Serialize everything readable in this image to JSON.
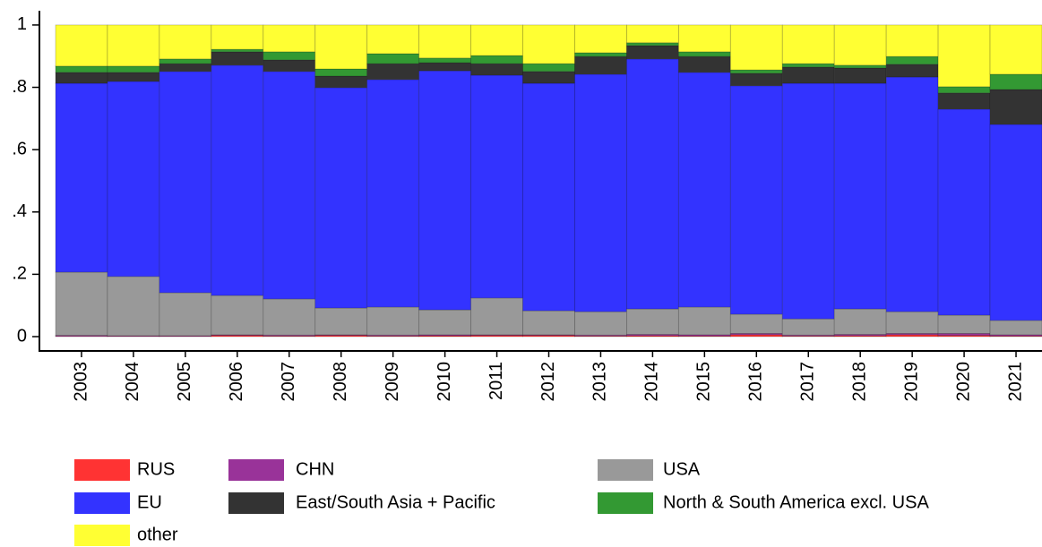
{
  "chart_data": {
    "type": "stacked_bar",
    "categories": [
      "2003",
      "2004",
      "2005",
      "2006",
      "2007",
      "2008",
      "2009",
      "2010",
      "2011",
      "2012",
      "2013",
      "2014",
      "2015",
      "2016",
      "2017",
      "2018",
      "2019",
      "2020",
      "2021"
    ],
    "series": [
      {
        "name": "RUS",
        "color": "#ff3333",
        "values": [
          0.001,
          0.001,
          0.001,
          0.004,
          0.002,
          0.004,
          0.002,
          0.003,
          0.004,
          0.004,
          0.002,
          0.003,
          0.002,
          0.006,
          0.002,
          0.003,
          0.006,
          0.004,
          0.002
        ]
      },
      {
        "name": "CHN",
        "color": "#993399",
        "values": [
          0.003,
          0.002,
          0.002,
          0.002,
          0.003,
          0.002,
          0.003,
          0.003,
          0.002,
          0.002,
          0.003,
          0.004,
          0.004,
          0.004,
          0.003,
          0.004,
          0.004,
          0.006,
          0.004
        ]
      },
      {
        "name": "USA",
        "color": "#999999",
        "values": [
          0.203,
          0.19,
          0.138,
          0.126,
          0.116,
          0.086,
          0.09,
          0.08,
          0.118,
          0.077,
          0.075,
          0.082,
          0.089,
          0.062,
          0.052,
          0.082,
          0.07,
          0.059,
          0.046
        ]
      },
      {
        "name": "EU",
        "color": "#3333ff",
        "values": [
          0.606,
          0.626,
          0.71,
          0.739,
          0.73,
          0.707,
          0.73,
          0.767,
          0.715,
          0.73,
          0.762,
          0.802,
          0.753,
          0.733,
          0.756,
          0.724,
          0.753,
          0.661,
          0.629
        ]
      },
      {
        "name": "East/South Asia + Pacific",
        "color": "#333333",
        "values": [
          0.035,
          0.029,
          0.025,
          0.043,
          0.037,
          0.037,
          0.051,
          0.026,
          0.037,
          0.038,
          0.057,
          0.043,
          0.051,
          0.04,
          0.052,
          0.049,
          0.041,
          0.052,
          0.112
        ]
      },
      {
        "name": "North & South America excl. USA",
        "color": "#339933",
        "values": [
          0.02,
          0.02,
          0.015,
          0.008,
          0.026,
          0.023,
          0.032,
          0.015,
          0.026,
          0.025,
          0.012,
          0.009,
          0.015,
          0.011,
          0.011,
          0.009,
          0.025,
          0.02,
          0.049
        ]
      },
      {
        "name": "other",
        "color": "#ffff33",
        "values": [
          0.132,
          0.132,
          0.109,
          0.078,
          0.086,
          0.141,
          0.092,
          0.106,
          0.098,
          0.124,
          0.089,
          0.057,
          0.086,
          0.144,
          0.124,
          0.129,
          0.101,
          0.198,
          0.158
        ]
      }
    ],
    "ylim": [
      0,
      1.04
    ],
    "yticks": [
      0,
      {
        "value": 0.2,
        "label": ".2"
      },
      {
        "value": 0.4,
        "label": ".4"
      },
      {
        "value": 0.6,
        "label": ".6"
      },
      {
        "value": 0.8,
        "label": ".8"
      },
      1
    ],
    "legend_columns": 3
  }
}
